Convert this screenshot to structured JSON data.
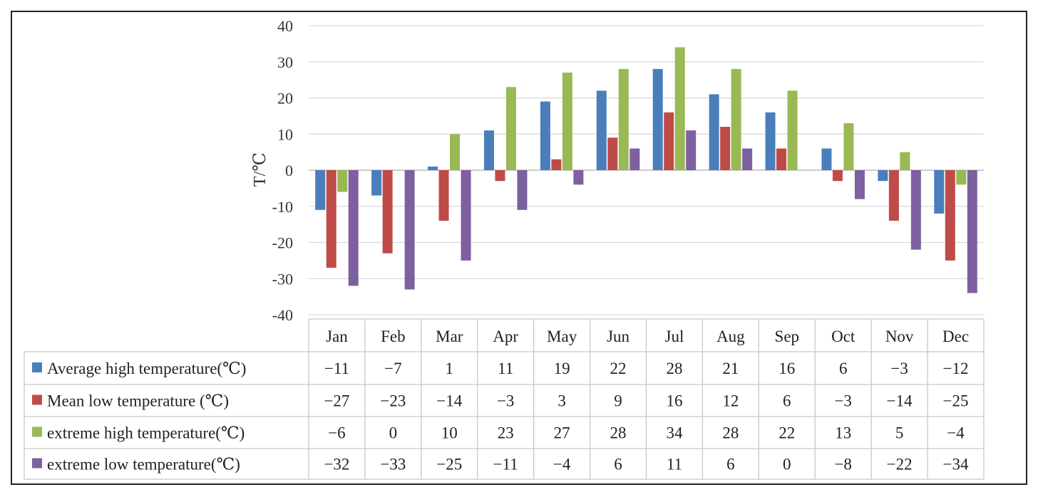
{
  "chart_data": {
    "type": "bar",
    "ylabel": "T/℃",
    "ylim": [
      -40,
      40
    ],
    "yticks": [
      40,
      30,
      20,
      10,
      0,
      -10,
      -20,
      -30,
      -40
    ],
    "ytick_labels": [
      "40",
      "30",
      "20",
      "10",
      "0",
      "-10",
      "-20",
      "-30",
      "-40"
    ],
    "grid": true,
    "legend": "data table",
    "categories": [
      "Jan",
      "Feb",
      "Mar",
      "Apr",
      "May",
      "Jun",
      "Jul",
      "Aug",
      "Sep",
      "Oct",
      "Nov",
      "Dec"
    ],
    "series": [
      {
        "name": "Average high temperature(℃)",
        "color": "#4a7ebb",
        "values": [
          -11,
          -7,
          1,
          11,
          19,
          22,
          28,
          21,
          16,
          6,
          -3,
          -12
        ],
        "labels": [
          "−11",
          "−7",
          "1",
          "11",
          "19",
          "22",
          "28",
          "21",
          "16",
          "6",
          "−3",
          "−12"
        ]
      },
      {
        "name": "Mean low temperature (℃)",
        "color": "#be4b48",
        "values": [
          -27,
          -23,
          -14,
          -3,
          3,
          9,
          16,
          12,
          6,
          -3,
          -14,
          -25
        ],
        "labels": [
          "−27",
          "−23",
          "−14",
          "−3",
          "3",
          "9",
          "16",
          "12",
          "6",
          "−3",
          "−14",
          "−25"
        ]
      },
      {
        "name": "extreme high temperature(℃)",
        "color": "#98b954",
        "values": [
          -6,
          0,
          10,
          23,
          27,
          28,
          34,
          28,
          22,
          13,
          5,
          -4
        ],
        "labels": [
          "−6",
          "0",
          "10",
          "23",
          "27",
          "28",
          "34",
          "28",
          "22",
          "13",
          "5",
          "−4"
        ]
      },
      {
        "name": "extreme low temperature(℃)",
        "color": "#7d60a0",
        "values": [
          -32,
          -33,
          -25,
          -11,
          -4,
          6,
          11,
          6,
          0,
          -8,
          -22,
          -34
        ],
        "labels": [
          "−32",
          "−33",
          "−25",
          "−11",
          "−4",
          "6",
          "11",
          "6",
          "0",
          "−8",
          "−22",
          "−34"
        ]
      }
    ]
  }
}
